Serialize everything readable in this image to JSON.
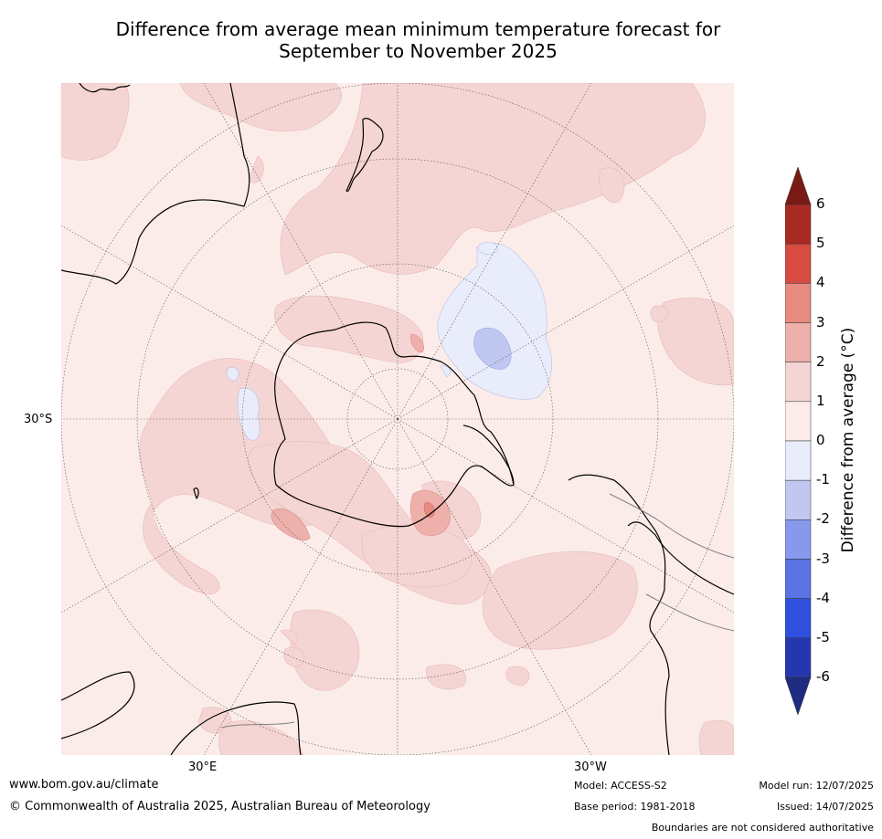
{
  "title": {
    "line1": "Difference from average mean minimum temperature forecast for",
    "line2": "September to November 2025"
  },
  "map": {
    "projection": "south-polar-stereographic",
    "lat_label": "30°S",
    "lon_labels": [
      "30°E",
      "30°W"
    ],
    "colors": {
      "land_outline": "#000000",
      "graticule": "#555555",
      "boundary": "#808080"
    }
  },
  "colorbar": {
    "label": "Difference from average (°C)",
    "label_prefix": "Difference from average (",
    "label_unit": "°C",
    "label_suffix": ")",
    "ticks": [
      "6",
      "5",
      "4",
      "3",
      "2",
      "1",
      "0",
      "-1",
      "-2",
      "-3",
      "-4",
      "-5",
      "-6"
    ],
    "levels": [
      {
        "range": "> 6",
        "color": "#7a1a16"
      },
      {
        "range": "5 to 6",
        "color": "#a82a22"
      },
      {
        "range": "4 to 5",
        "color": "#d84b40"
      },
      {
        "range": "3 to 4",
        "color": "#e78a80"
      },
      {
        "range": "2 to 3",
        "color": "#eeb0aa"
      },
      {
        "range": "1 to 2",
        "color": "#f5d5d3"
      },
      {
        "range": "0 to 1",
        "color": "#fbecea"
      },
      {
        "range": "-1 to 0",
        "color": "#e9ecfb"
      },
      {
        "range": "-2 to -1",
        "color": "#c0c8f2"
      },
      {
        "range": "-3 to -2",
        "color": "#8898ec"
      },
      {
        "range": "-4 to -3",
        "color": "#5a72e4"
      },
      {
        "range": "-5 to -4",
        "color": "#2f4fde"
      },
      {
        "range": "-6 to -5",
        "color": "#2537b0"
      },
      {
        "range": "< -6",
        "color": "#1f2b80"
      }
    ]
  },
  "footer": {
    "website": "www.bom.gov.au/climate",
    "copyright": "© Commonwealth of Australia 2025, Australian Bureau of Meteorology",
    "model": "Model: ACCESS-S2",
    "base_period": "Base period: 1981-2018",
    "model_run": "Model run: 12/07/2025",
    "issued": "Issued: 14/07/2025",
    "disclaimer": "Boundaries are not considered authoritative"
  }
}
